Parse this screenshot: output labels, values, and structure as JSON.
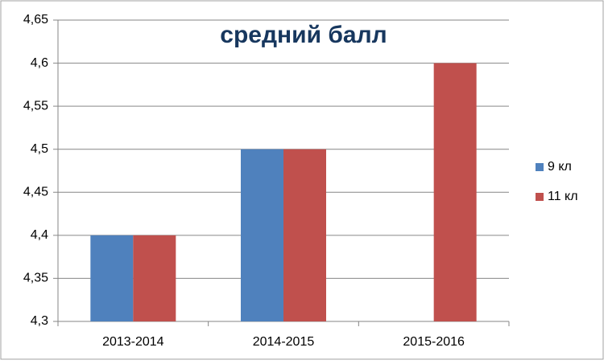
{
  "chart_data": {
    "type": "bar",
    "title": "средний балл",
    "categories": [
      "2013-2014",
      "2014-2015",
      "2015-2016"
    ],
    "series": [
      {
        "name": "9 кл",
        "color": "#4f81bd",
        "values": [
          4.4,
          4.5,
          null
        ]
      },
      {
        "name": "11 кл",
        "color": "#c0504d",
        "values": [
          4.4,
          4.5,
          4.6
        ]
      }
    ],
    "ylim": [
      4.3,
      4.65
    ],
    "yticks": [
      {
        "value": 4.3,
        "label": "4,3"
      },
      {
        "value": 4.35,
        "label": "4,35"
      },
      {
        "value": 4.4,
        "label": "4,4"
      },
      {
        "value": 4.45,
        "label": "4,45"
      },
      {
        "value": 4.5,
        "label": "4,5"
      },
      {
        "value": 4.55,
        "label": "4,55"
      },
      {
        "value": 4.6,
        "label": "4,6"
      },
      {
        "value": 4.65,
        "label": "4,65"
      }
    ],
    "grid": true,
    "legend": "right"
  }
}
